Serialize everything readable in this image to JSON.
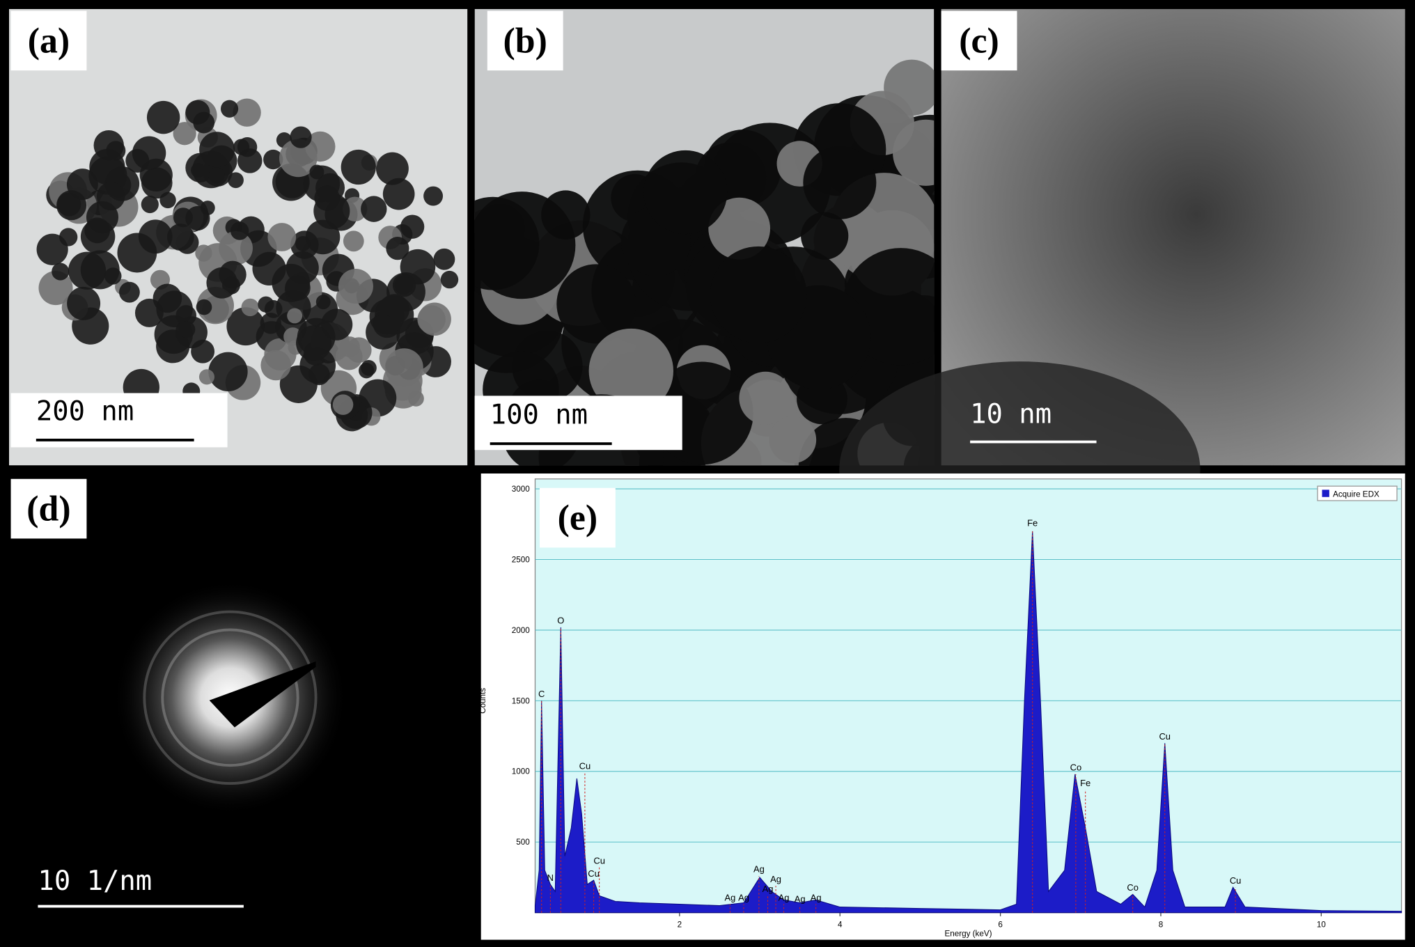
{
  "panels": [
    {
      "label": "(a)",
      "scale_bar": "200 nm"
    },
    {
      "label": "(b)",
      "scale_bar": "100 nm"
    },
    {
      "label": "(c)",
      "scale_bar": "10  nm"
    },
    {
      "label": "(d)",
      "scale_bar": "10 1/nm"
    },
    {
      "label": "(e)"
    }
  ],
  "chart_data": {
    "type": "area",
    "xlabel": "Energy (keV)",
    "ylabel": "Counts",
    "xlim": [
      0.2,
      11
    ],
    "ylim": [
      0,
      3000
    ],
    "xticks": [
      2,
      4,
      6,
      8,
      10
    ],
    "yticks": [
      500,
      1000,
      1500,
      2000,
      2500,
      3000
    ],
    "grid": true,
    "legend": "top-right",
    "background": "#d8f8f8",
    "series": [
      {
        "name": "Acquire EDX",
        "color": "#1c1cc8",
        "x": [
          0.2,
          0.25,
          0.28,
          0.32,
          0.39,
          0.45,
          0.52,
          0.57,
          0.65,
          0.72,
          0.78,
          0.85,
          0.93,
          1.0,
          1.2,
          1.5,
          2.0,
          2.5,
          2.8,
          3.0,
          3.15,
          3.3,
          3.5,
          3.7,
          4.0,
          5.0,
          6.0,
          6.2,
          6.3,
          6.4,
          6.5,
          6.6,
          6.8,
          6.93,
          7.06,
          7.2,
          7.5,
          7.65,
          7.8,
          7.95,
          8.05,
          8.15,
          8.3,
          8.8,
          8.9,
          9.05,
          10,
          11
        ],
        "values": [
          50,
          300,
          1500,
          300,
          200,
          150,
          2020,
          400,
          600,
          950,
          700,
          200,
          230,
          120,
          80,
          70,
          60,
          50,
          70,
          250,
          150,
          90,
          70,
          90,
          40,
          30,
          20,
          60,
          1500,
          2700,
          1500,
          150,
          300,
          980,
          600,
          150,
          60,
          130,
          40,
          300,
          1200,
          300,
          40,
          40,
          180,
          40,
          15,
          10
        ]
      }
    ],
    "annotations": [
      {
        "text": "C",
        "x": 0.28,
        "y": 1500
      },
      {
        "text": "N",
        "x": 0.39,
        "y": 200
      },
      {
        "text": "O",
        "x": 0.52,
        "y": 2020
      },
      {
        "text": "Cu",
        "x": 0.82,
        "y": 990
      },
      {
        "text": "Cu",
        "x": 0.93,
        "y": 230
      },
      {
        "text": "Cu",
        "x": 1.0,
        "y": 320
      },
      {
        "text": "Ag",
        "x": 2.63,
        "y": 60
      },
      {
        "text": "Ag",
        "x": 2.8,
        "y": 60
      },
      {
        "text": "Ag",
        "x": 2.99,
        "y": 260
      },
      {
        "text": "Ag",
        "x": 3.2,
        "y": 190
      },
      {
        "text": "Ag",
        "x": 3.1,
        "y": 120
      },
      {
        "text": "Ag",
        "x": 3.3,
        "y": 60
      },
      {
        "text": "Ag",
        "x": 3.5,
        "y": 50
      },
      {
        "text": "Ag",
        "x": 3.7,
        "y": 60
      },
      {
        "text": "Fe",
        "x": 6.4,
        "y": 2710
      },
      {
        "text": "Co",
        "x": 6.94,
        "y": 980
      },
      {
        "text": "Fe",
        "x": 7.06,
        "y": 870
      },
      {
        "text": "Co",
        "x": 7.65,
        "y": 130
      },
      {
        "text": "Cu",
        "x": 8.05,
        "y": 1200
      },
      {
        "text": "Cu",
        "x": 8.93,
        "y": 180
      }
    ]
  }
}
